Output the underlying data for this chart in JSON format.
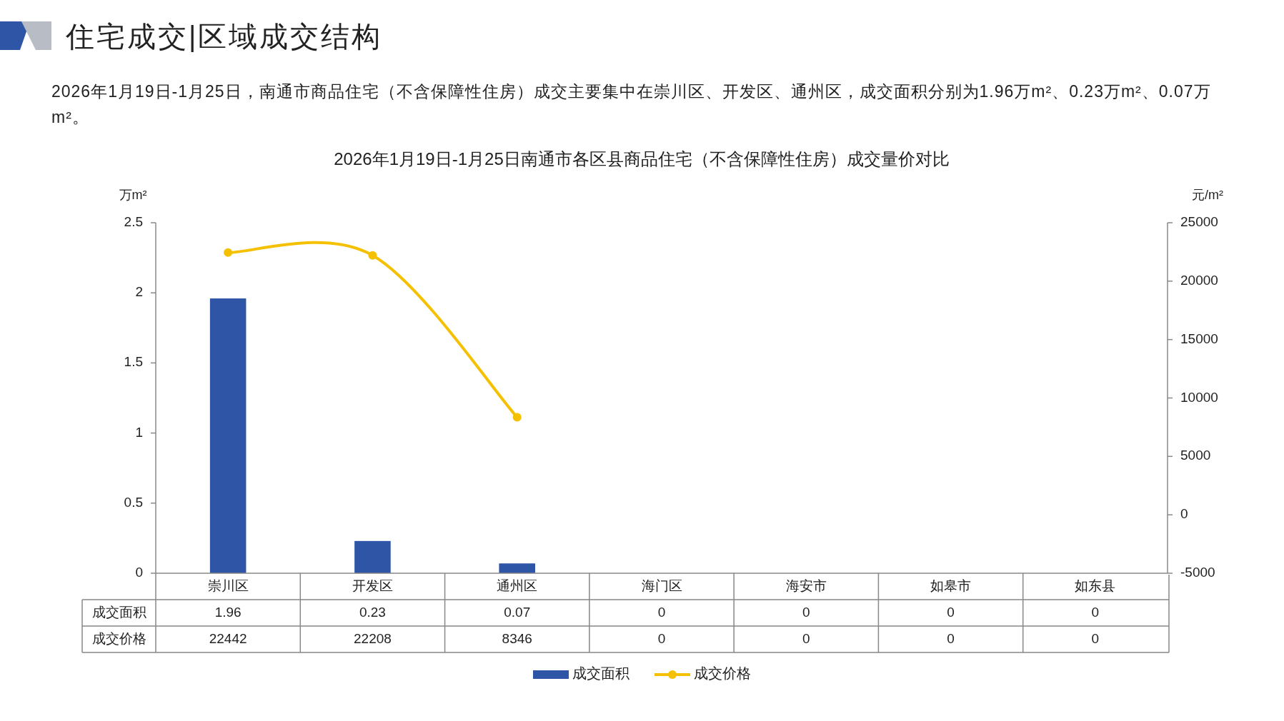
{
  "chart_data": {
    "type": "bar",
    "title": "2026年1月19日-1月25日南通市各区县商品住宅（不含保障性住房）成交量价对比",
    "annotations": [
      "住宅成交|区域成交结构",
      "2026年1月19日-1月25日，南通市商品住宅（不含保障性住房）成交主要集中在崇川区、开发区、通州区，成交面积分别为1.96万m²、0.23万m²、0.07万m²。"
    ],
    "ylabel": "万m²",
    "y2label": "元/m²",
    "categories": [
      "崇川区",
      "开发区",
      "通州区",
      "海门区",
      "海安市",
      "如皋市",
      "如东县"
    ],
    "series": [
      {
        "name": "成交面积",
        "color": "#2f56a6",
        "values": [
          1.96,
          0.23,
          0.07,
          0,
          0,
          0,
          0
        ],
        "value_labels": [
          "1.96",
          "0.23",
          "0.07",
          "0",
          "0",
          "0",
          "0"
        ]
      },
      {
        "name": "成交价格",
        "type": "line",
        "axis": "y2",
        "color": "#f5c000",
        "values": [
          22442,
          22208,
          8346,
          null,
          null,
          null,
          null
        ],
        "value_labels": [
          "22442",
          "22208",
          "8346",
          "0",
          "0",
          "0",
          "0"
        ]
      }
    ],
    "ylim": [
      0,
      2.5
    ],
    "yticks": [
      0,
      0.5,
      1,
      1.5,
      2,
      2.5
    ],
    "y2lim": [
      -5000,
      25000
    ],
    "y2ticks": [
      -5000,
      0,
      5000,
      10000,
      15000,
      20000,
      25000
    ],
    "legend": "bottom",
    "marker": "circle"
  }
}
